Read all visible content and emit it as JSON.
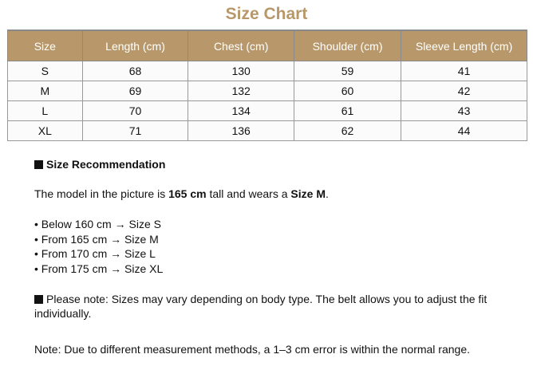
{
  "title": "Size Chart",
  "table": {
    "headers": [
      "Size",
      "Length (cm)",
      "Chest (cm)",
      "Shoulder (cm)",
      "Sleeve Length (cm)"
    ],
    "rows": [
      [
        "S",
        "68",
        "130",
        "59",
        "41"
      ],
      [
        "M",
        "69",
        "132",
        "60",
        "42"
      ],
      [
        "L",
        "70",
        "134",
        "61",
        "43"
      ],
      [
        "XL",
        "71",
        "136",
        "62",
        "44"
      ]
    ]
  },
  "recommendation": {
    "heading": "Size Recommendation",
    "model_pre": "The model in the picture is ",
    "model_height": "165 cm",
    "model_mid": " tall and wears a ",
    "model_size": "Size M",
    "model_end": ".",
    "bullets": [
      "• Below 160 cm → Size S",
      "• From 165 cm → Size M",
      "• From 170 cm → Size L",
      "• From 175 cm → Size XL"
    ],
    "note1": "Please note: Sizes may vary depending on body type. The belt allows you to adjust the fit individually.",
    "note2": "Note: Due to different measurement methods, a 1–3 cm error is within the normal range."
  },
  "colors": {
    "accent": "#b8986a"
  }
}
